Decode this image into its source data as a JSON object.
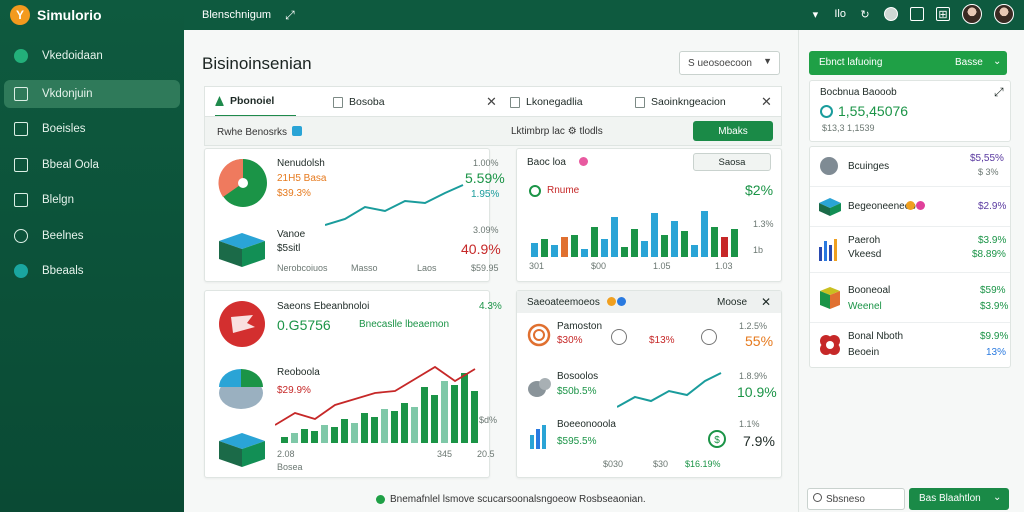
{
  "app": {
    "name": "Simulorio",
    "logo_letter": "Y"
  },
  "topbar": {
    "breadcrumb": "Blenschnigum",
    "bell_label": "Ilo",
    "icon_names": [
      "refresh-icon",
      "settings-icon",
      "window-icon",
      "grid-icon"
    ]
  },
  "sidebar": {
    "items": [
      {
        "label": "Vkedoidaan",
        "icon": "dot"
      },
      {
        "label": "Vkdonjuin",
        "icon": "box",
        "active": true
      },
      {
        "label": "Boeisles",
        "icon": "box"
      },
      {
        "label": "Bbeal Oola",
        "icon": "box"
      },
      {
        "label": "Blelgn",
        "icon": "box"
      },
      {
        "label": "Beelnes",
        "icon": "circle"
      },
      {
        "label": "Bbeaals",
        "icon": "teal"
      }
    ]
  },
  "main": {
    "title": "Bisinoinsenian",
    "dropdown": "S ueosoecoon",
    "tabs": [
      {
        "label": "Pbonoiel",
        "active": true
      },
      {
        "label": "Bosoba"
      },
      {
        "label": "Lkonegadlia"
      },
      {
        "label": "Saoinkngeacion"
      }
    ],
    "subbar": {
      "left": "Rwhe Benosrks",
      "mid": "Lktimbrp lac",
      "mid2": "tlodls",
      "button": "Mbaks"
    },
    "card1": {
      "title": "Nenudolsh",
      "pct1": "1.00%",
      "value1": "21H5 Basa",
      "value2": "$39.3%",
      "big_pct": "5.59%",
      "small_pct": "1.95%",
      "sub_label": "Vanoe",
      "sub_value": "$5sitl",
      "red_pct": "40.9%",
      "red_small": "3.09%",
      "foot": [
        "Nerobcoiuos",
        "Masso",
        "Laos",
        "$59.95"
      ]
    },
    "card2": {
      "title": "Baoc loa",
      "button": "Saosa",
      "legend": "Rnume",
      "pct": "$2%",
      "side1": "1.3%",
      "side2": "1b",
      "axis": [
        "301",
        "$00",
        "1.05",
        "1.03"
      ]
    },
    "card3": {
      "title": "Saeons Ebeanbnoloi",
      "pct": "4.3%",
      "value": "0.G5756",
      "value_label": "Bnecaslle lbeaemon",
      "sub_title": "Reoboola",
      "sub_value": "$29.9%",
      "badge": "$d%",
      "axis": [
        "2.08",
        "Bosea",
        "345",
        "20.5"
      ]
    },
    "card4": {
      "title": "Saeoateemoeos",
      "button": "Moose",
      "rows": [
        {
          "label": "Pamoston",
          "value": "$30%",
          "v2": "$13%",
          "pct": "1.2.5%",
          "pct2": "55%"
        },
        {
          "label": "Bosoolos",
          "value": "$50b.5%",
          "pct": "1.8.9%",
          "pct2": "10.9%"
        },
        {
          "label": "Boeeonooola",
          "value": "$595.5%",
          "pct": "1.1%",
          "pct2": "7.9%"
        }
      ],
      "axis": [
        "$030",
        "$30",
        "$16.19%"
      ]
    },
    "footer_status": "Bnemafnlel lsmove scucarsoonalsngoeow Rosbseaonian."
  },
  "right": {
    "top_button": "Ebnct lafuoing",
    "top_button_right": "Basse",
    "summary": {
      "title": "Bocbnua Baooob",
      "value": "1,55,45076",
      "sub": "$13,3 1,1539"
    },
    "rows": [
      {
        "label": "Bcuinges",
        "v1": "$5,55%",
        "v2": "$ 3%"
      },
      {
        "label": "Begeoneeneeo",
        "v1": "$2.9%",
        "v2": ""
      },
      {
        "label": "Paeroh",
        "label2": "Vkeesd",
        "v1": "$3.9%",
        "v2": "$8.89%"
      },
      {
        "label": "Booneoal",
        "label2": "Weenel",
        "v1": "$59%",
        "v2": "$3.9%"
      },
      {
        "label": "Bonal Nboth",
        "label2": "Beoein",
        "v1": "$9.9%",
        "v2": "13%"
      }
    ],
    "search": "Sbsneso",
    "bottom_button": "Bas Blaahtlon"
  },
  "colors": {
    "primary": "#0e5a3f",
    "accent": "#1fa046",
    "red": "#c62828",
    "teal": "#1a9c9c",
    "orange": "#e67a1e"
  }
}
